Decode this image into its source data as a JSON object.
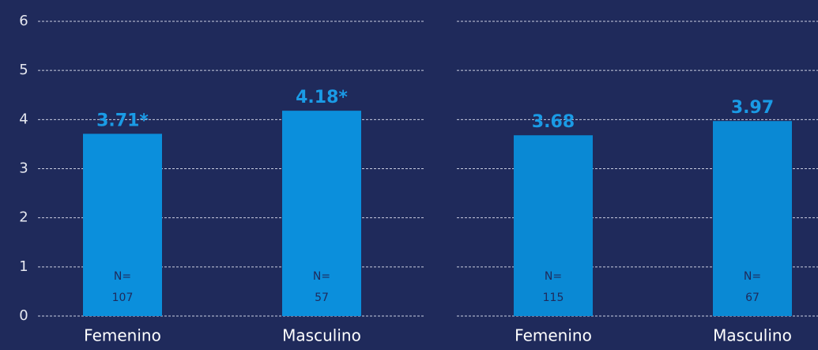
{
  "chart_data": [
    {
      "type": "bar",
      "categories": [
        "Femenino",
        "Masculino"
      ],
      "values": [
        3.71,
        4.18
      ],
      "value_labels": [
        "3.71*",
        "4.18*"
      ],
      "sample_label": "N=",
      "sample_sizes": [
        107,
        57
      ],
      "color": "#0b8fdc",
      "ylim": [
        0,
        6
      ],
      "yticks": [
        0,
        1,
        2,
        3,
        4,
        5,
        6
      ],
      "grid": true,
      "show_tick_labels": true
    },
    {
      "type": "bar",
      "categories": [
        "Femenino",
        "Masculino"
      ],
      "values": [
        3.68,
        3.97
      ],
      "sample_label": "N=",
      "sample_sizes": [
        115,
        67
      ],
      "color": "#0a89d4",
      "ylim": [
        0,
        6
      ],
      "yticks": [
        0,
        1,
        2,
        3,
        4,
        5,
        6
      ],
      "grid": true,
      "show_tick_labels": false
    }
  ]
}
